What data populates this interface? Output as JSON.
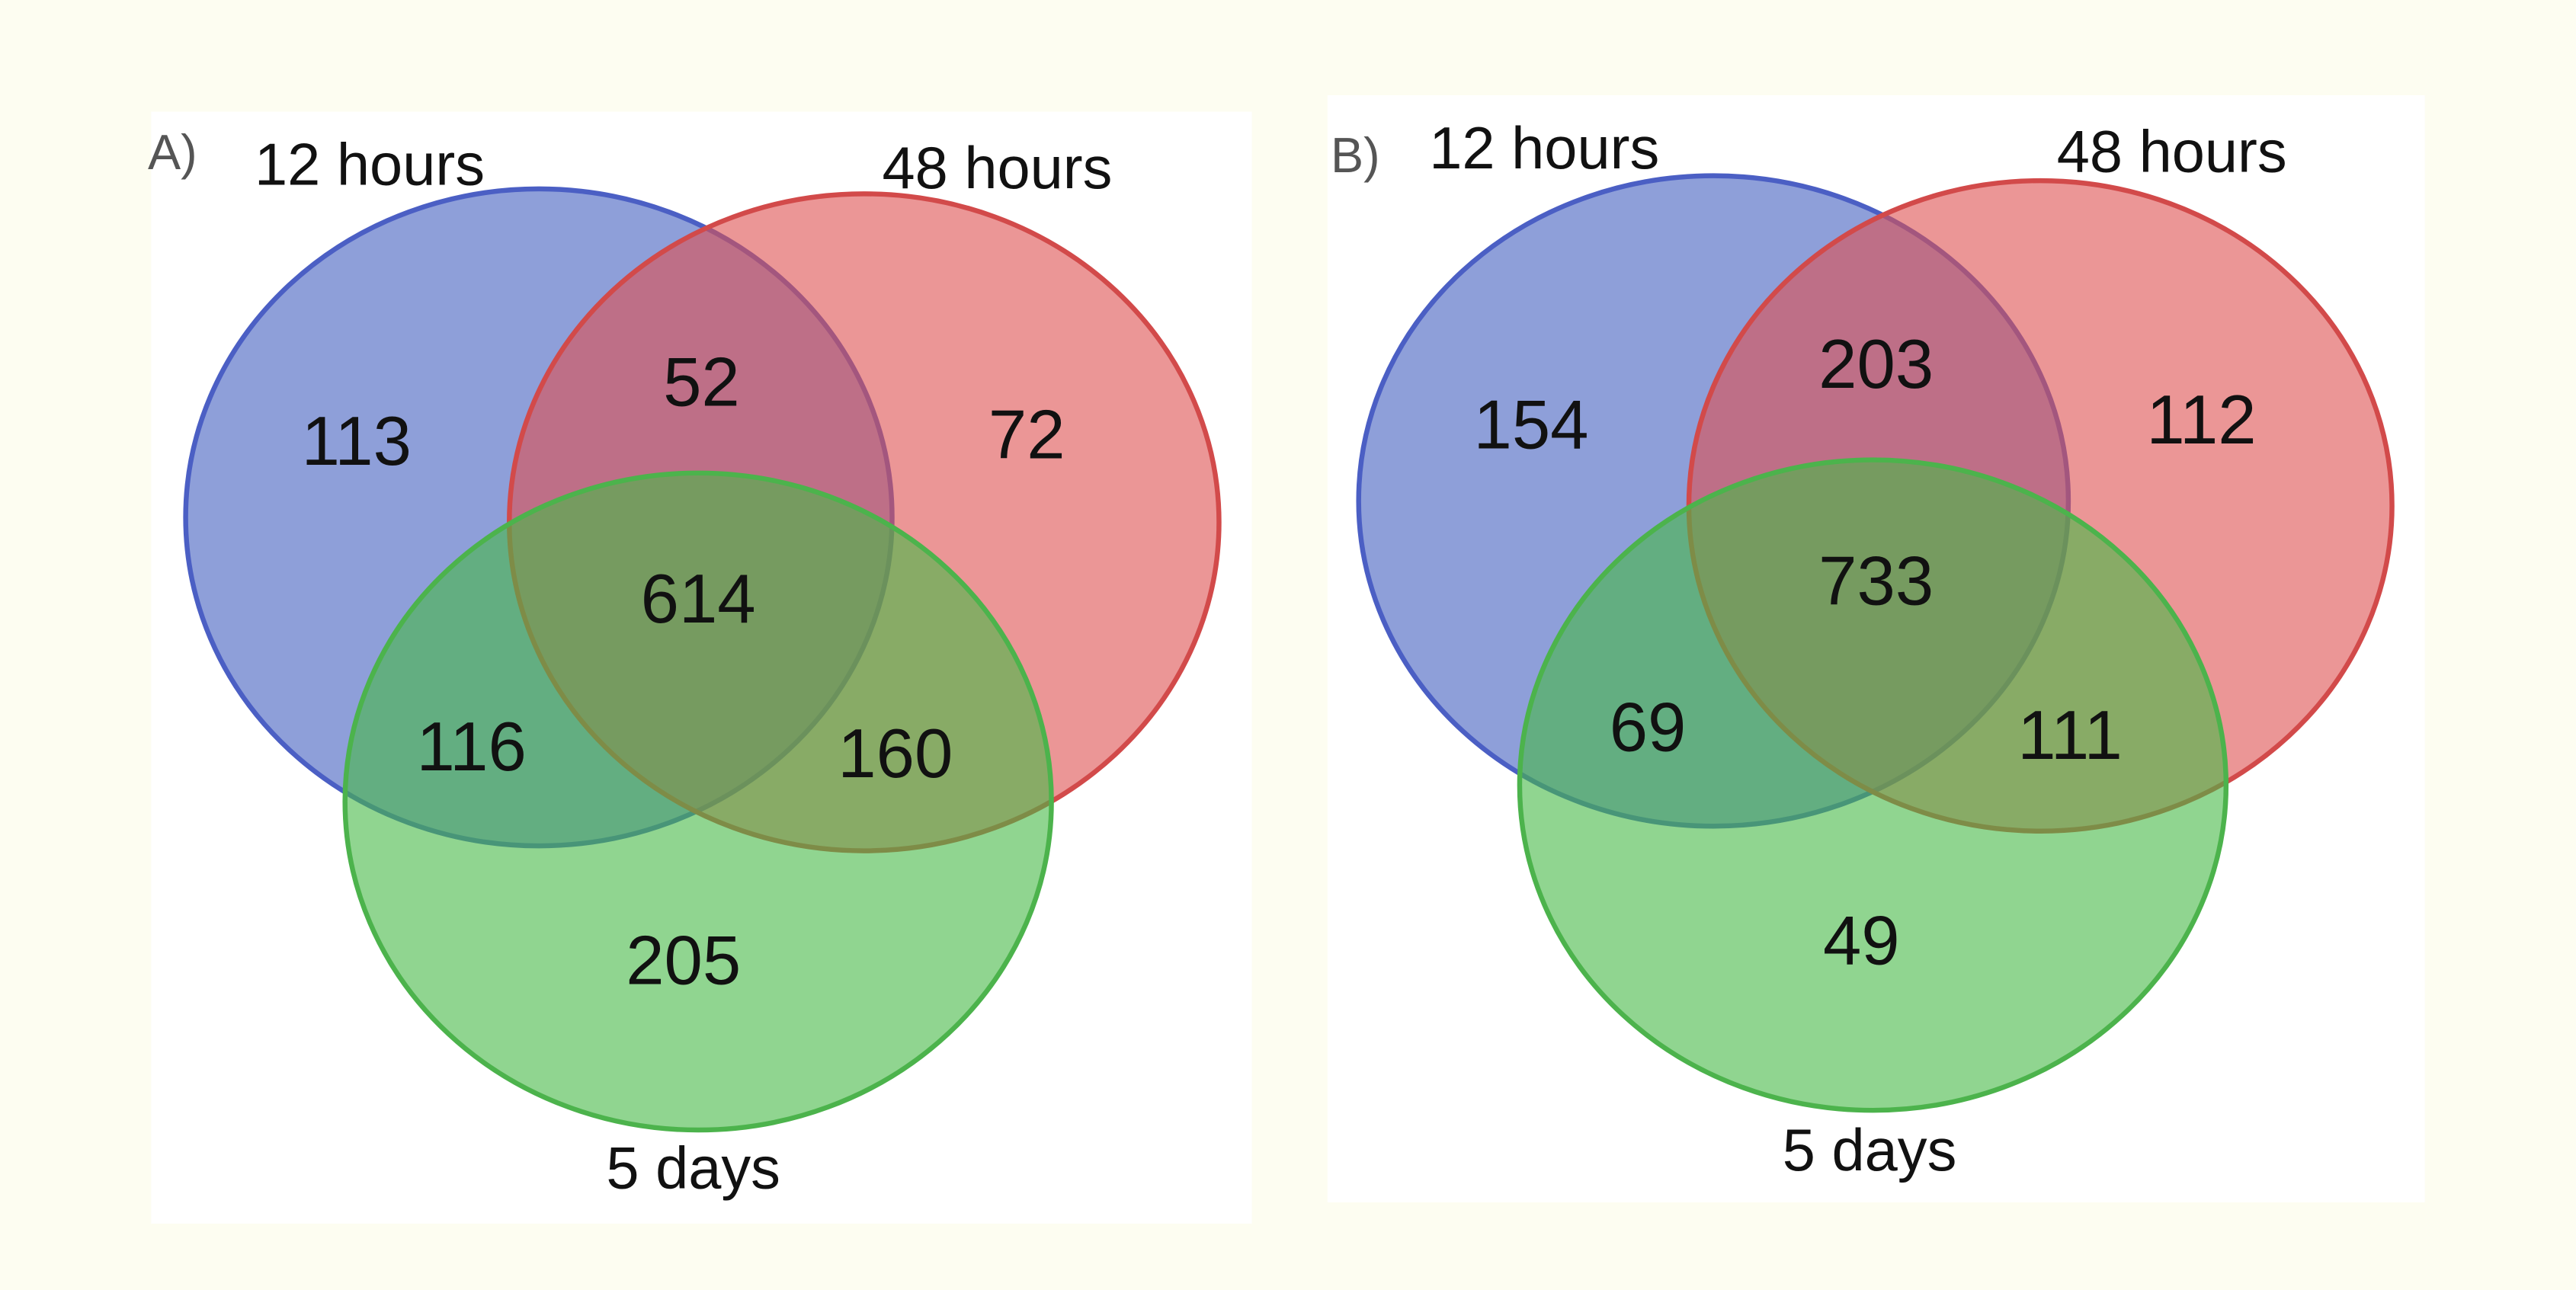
{
  "panels": [
    {
      "label": "A)",
      "sets": [
        "12 hours",
        "48 hours",
        "5 days"
      ],
      "counts": [
        113,
        52,
        72,
        614,
        116,
        160,
        205
      ]
    },
    {
      "label": "B)",
      "sets": [
        "12 hours",
        "48 hours",
        "5 days"
      ],
      "counts": [
        154,
        203,
        112,
        733,
        69,
        111,
        49
      ]
    }
  ]
}
